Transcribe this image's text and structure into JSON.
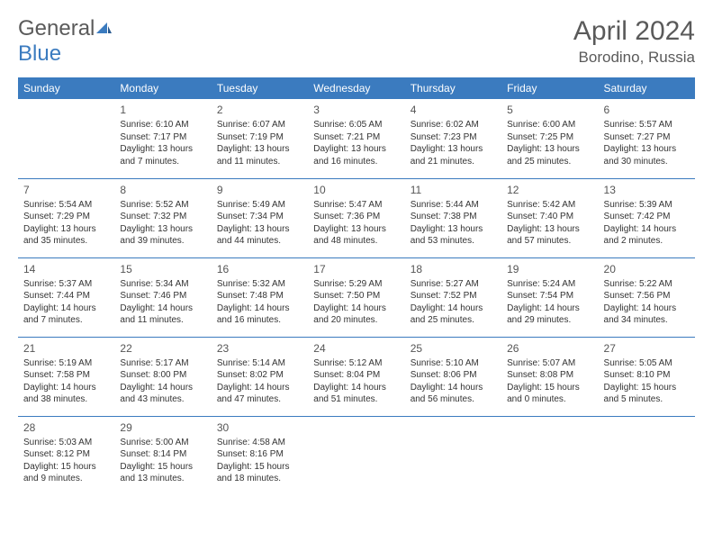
{
  "logo": {
    "text1": "General",
    "text2": "Blue"
  },
  "title": "April 2024",
  "location": "Borodino, Russia",
  "colors": {
    "header_bg": "#3b7bbf",
    "header_text": "#ffffff",
    "border": "#3b7bbf",
    "text": "#333333",
    "logo_gray": "#5a5a5a",
    "logo_blue": "#3b7bbf"
  },
  "day_names": [
    "Sunday",
    "Monday",
    "Tuesday",
    "Wednesday",
    "Thursday",
    "Friday",
    "Saturday"
  ],
  "weeks": [
    [
      null,
      {
        "n": "1",
        "sr": "6:10 AM",
        "ss": "7:17 PM",
        "dl": "13 hours and 7 minutes."
      },
      {
        "n": "2",
        "sr": "6:07 AM",
        "ss": "7:19 PM",
        "dl": "13 hours and 11 minutes."
      },
      {
        "n": "3",
        "sr": "6:05 AM",
        "ss": "7:21 PM",
        "dl": "13 hours and 16 minutes."
      },
      {
        "n": "4",
        "sr": "6:02 AM",
        "ss": "7:23 PM",
        "dl": "13 hours and 21 minutes."
      },
      {
        "n": "5",
        "sr": "6:00 AM",
        "ss": "7:25 PM",
        "dl": "13 hours and 25 minutes."
      },
      {
        "n": "6",
        "sr": "5:57 AM",
        "ss": "7:27 PM",
        "dl": "13 hours and 30 minutes."
      }
    ],
    [
      {
        "n": "7",
        "sr": "5:54 AM",
        "ss": "7:29 PM",
        "dl": "13 hours and 35 minutes."
      },
      {
        "n": "8",
        "sr": "5:52 AM",
        "ss": "7:32 PM",
        "dl": "13 hours and 39 minutes."
      },
      {
        "n": "9",
        "sr": "5:49 AM",
        "ss": "7:34 PM",
        "dl": "13 hours and 44 minutes."
      },
      {
        "n": "10",
        "sr": "5:47 AM",
        "ss": "7:36 PM",
        "dl": "13 hours and 48 minutes."
      },
      {
        "n": "11",
        "sr": "5:44 AM",
        "ss": "7:38 PM",
        "dl": "13 hours and 53 minutes."
      },
      {
        "n": "12",
        "sr": "5:42 AM",
        "ss": "7:40 PM",
        "dl": "13 hours and 57 minutes."
      },
      {
        "n": "13",
        "sr": "5:39 AM",
        "ss": "7:42 PM",
        "dl": "14 hours and 2 minutes."
      }
    ],
    [
      {
        "n": "14",
        "sr": "5:37 AM",
        "ss": "7:44 PM",
        "dl": "14 hours and 7 minutes."
      },
      {
        "n": "15",
        "sr": "5:34 AM",
        "ss": "7:46 PM",
        "dl": "14 hours and 11 minutes."
      },
      {
        "n": "16",
        "sr": "5:32 AM",
        "ss": "7:48 PM",
        "dl": "14 hours and 16 minutes."
      },
      {
        "n": "17",
        "sr": "5:29 AM",
        "ss": "7:50 PM",
        "dl": "14 hours and 20 minutes."
      },
      {
        "n": "18",
        "sr": "5:27 AM",
        "ss": "7:52 PM",
        "dl": "14 hours and 25 minutes."
      },
      {
        "n": "19",
        "sr": "5:24 AM",
        "ss": "7:54 PM",
        "dl": "14 hours and 29 minutes."
      },
      {
        "n": "20",
        "sr": "5:22 AM",
        "ss": "7:56 PM",
        "dl": "14 hours and 34 minutes."
      }
    ],
    [
      {
        "n": "21",
        "sr": "5:19 AM",
        "ss": "7:58 PM",
        "dl": "14 hours and 38 minutes."
      },
      {
        "n": "22",
        "sr": "5:17 AM",
        "ss": "8:00 PM",
        "dl": "14 hours and 43 minutes."
      },
      {
        "n": "23",
        "sr": "5:14 AM",
        "ss": "8:02 PM",
        "dl": "14 hours and 47 minutes."
      },
      {
        "n": "24",
        "sr": "5:12 AM",
        "ss": "8:04 PM",
        "dl": "14 hours and 51 minutes."
      },
      {
        "n": "25",
        "sr": "5:10 AM",
        "ss": "8:06 PM",
        "dl": "14 hours and 56 minutes."
      },
      {
        "n": "26",
        "sr": "5:07 AM",
        "ss": "8:08 PM",
        "dl": "15 hours and 0 minutes."
      },
      {
        "n": "27",
        "sr": "5:05 AM",
        "ss": "8:10 PM",
        "dl": "15 hours and 5 minutes."
      }
    ],
    [
      {
        "n": "28",
        "sr": "5:03 AM",
        "ss": "8:12 PM",
        "dl": "15 hours and 9 minutes."
      },
      {
        "n": "29",
        "sr": "5:00 AM",
        "ss": "8:14 PM",
        "dl": "15 hours and 13 minutes."
      },
      {
        "n": "30",
        "sr": "4:58 AM",
        "ss": "8:16 PM",
        "dl": "15 hours and 18 minutes."
      },
      null,
      null,
      null,
      null
    ]
  ],
  "labels": {
    "sunrise": "Sunrise:",
    "sunset": "Sunset:",
    "daylight": "Daylight:"
  }
}
